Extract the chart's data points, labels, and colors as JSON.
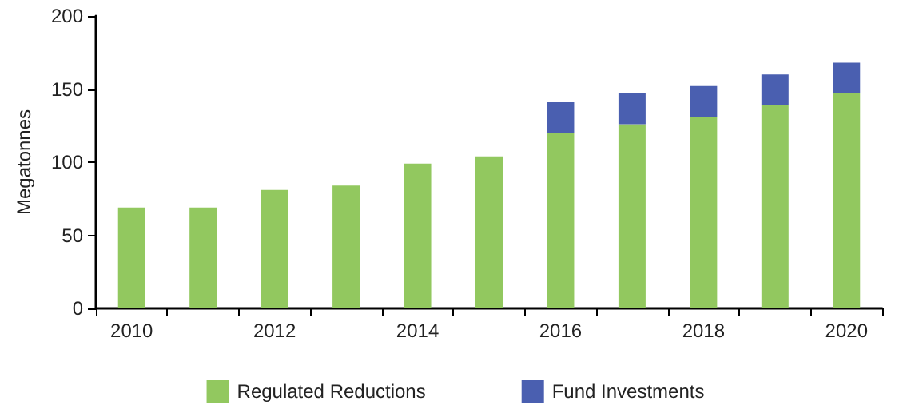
{
  "chart_data": {
    "type": "bar",
    "ylabel": "Megatonnes",
    "categories": [
      "2010",
      null,
      "2012",
      null,
      "2014",
      null,
      "2016",
      null,
      "2018",
      null,
      "2020"
    ],
    "stacked": true,
    "series": [
      {
        "name": "Regulated Reductions",
        "color": "#92c85f",
        "values": [
          69,
          69,
          81,
          84,
          99,
          104,
          120,
          126,
          131,
          139,
          147
        ]
      },
      {
        "name": "Fund Investments",
        "color": "#4a5fb0",
        "values": [
          null,
          null,
          null,
          null,
          null,
          null,
          21,
          21,
          21,
          21,
          21
        ]
      }
    ],
    "ylim": [
      0,
      200
    ],
    "yticks": [
      0,
      50,
      100,
      150,
      200
    ],
    "grid": false,
    "legend": "bottom"
  }
}
